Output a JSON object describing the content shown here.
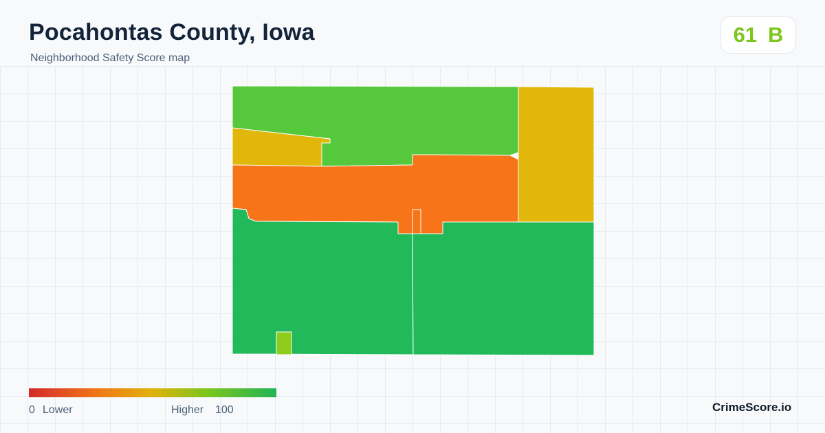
{
  "header": {
    "title": "Pocahontas County, Iowa",
    "subtitle": "Neighborhood Safety Score map"
  },
  "score": {
    "value": "61",
    "grade": "B",
    "color": "#7cc61e"
  },
  "map": {
    "regions": [
      {
        "name": "north",
        "color": "#56c83c"
      },
      {
        "name": "northeast",
        "color": "#e0b70a"
      },
      {
        "name": "northwest-notch",
        "color": "#e0b70a"
      },
      {
        "name": "central-band",
        "color": "#f77518"
      },
      {
        "name": "southwest",
        "color": "#22b95a"
      },
      {
        "name": "southeast",
        "color": "#22b95a"
      },
      {
        "name": "south-small-tract",
        "color": "#8ccc1a"
      }
    ]
  },
  "legend": {
    "min_label": "0",
    "low_label": "Lower",
    "high_label": "Higher",
    "max_label": "100",
    "colors": [
      "#d42a2a",
      "#f07818",
      "#e0b20a",
      "#7cc61e",
      "#22b455"
    ]
  },
  "brand": "CrimeScore.io"
}
